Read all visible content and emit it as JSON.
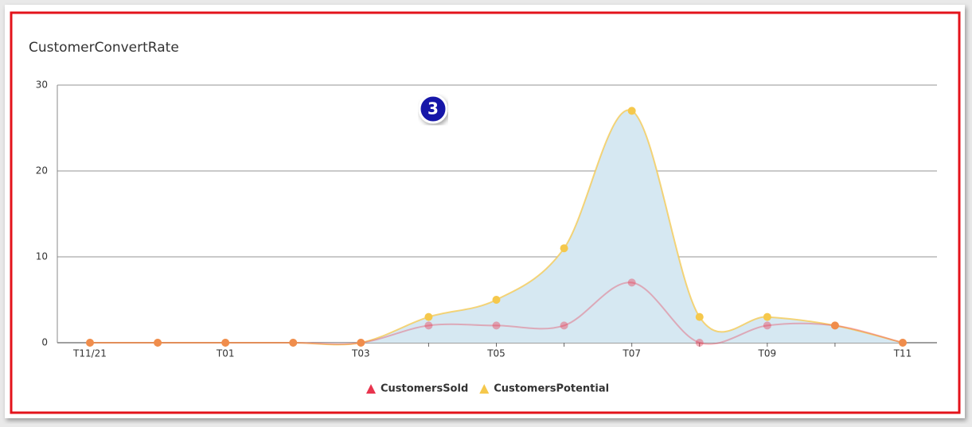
{
  "chart_data": {
    "type": "area-spline",
    "title": "CustomerConvertRate",
    "annotation": "3",
    "categories": [
      "T11/21",
      null,
      "T01",
      null,
      "T03",
      null,
      "T05",
      null,
      "T07",
      null,
      "T09",
      null,
      "T11"
    ],
    "series": [
      {
        "name": "CustomersSold",
        "color": "#e8344e",
        "values": [
          0,
          0,
          0,
          0,
          0,
          2,
          2,
          2,
          7,
          0,
          2,
          2,
          0
        ]
      },
      {
        "name": "CustomersPotential",
        "color": "#f5c84c",
        "values": [
          0,
          0,
          0,
          0,
          0,
          3,
          5,
          11,
          27,
          3,
          3,
          2,
          0
        ]
      }
    ],
    "area_color": "#d6e8f2",
    "ylim": [
      0,
      30
    ],
    "yticks": [
      0,
      10,
      20,
      30
    ],
    "grid": true,
    "legend": "bottom"
  }
}
